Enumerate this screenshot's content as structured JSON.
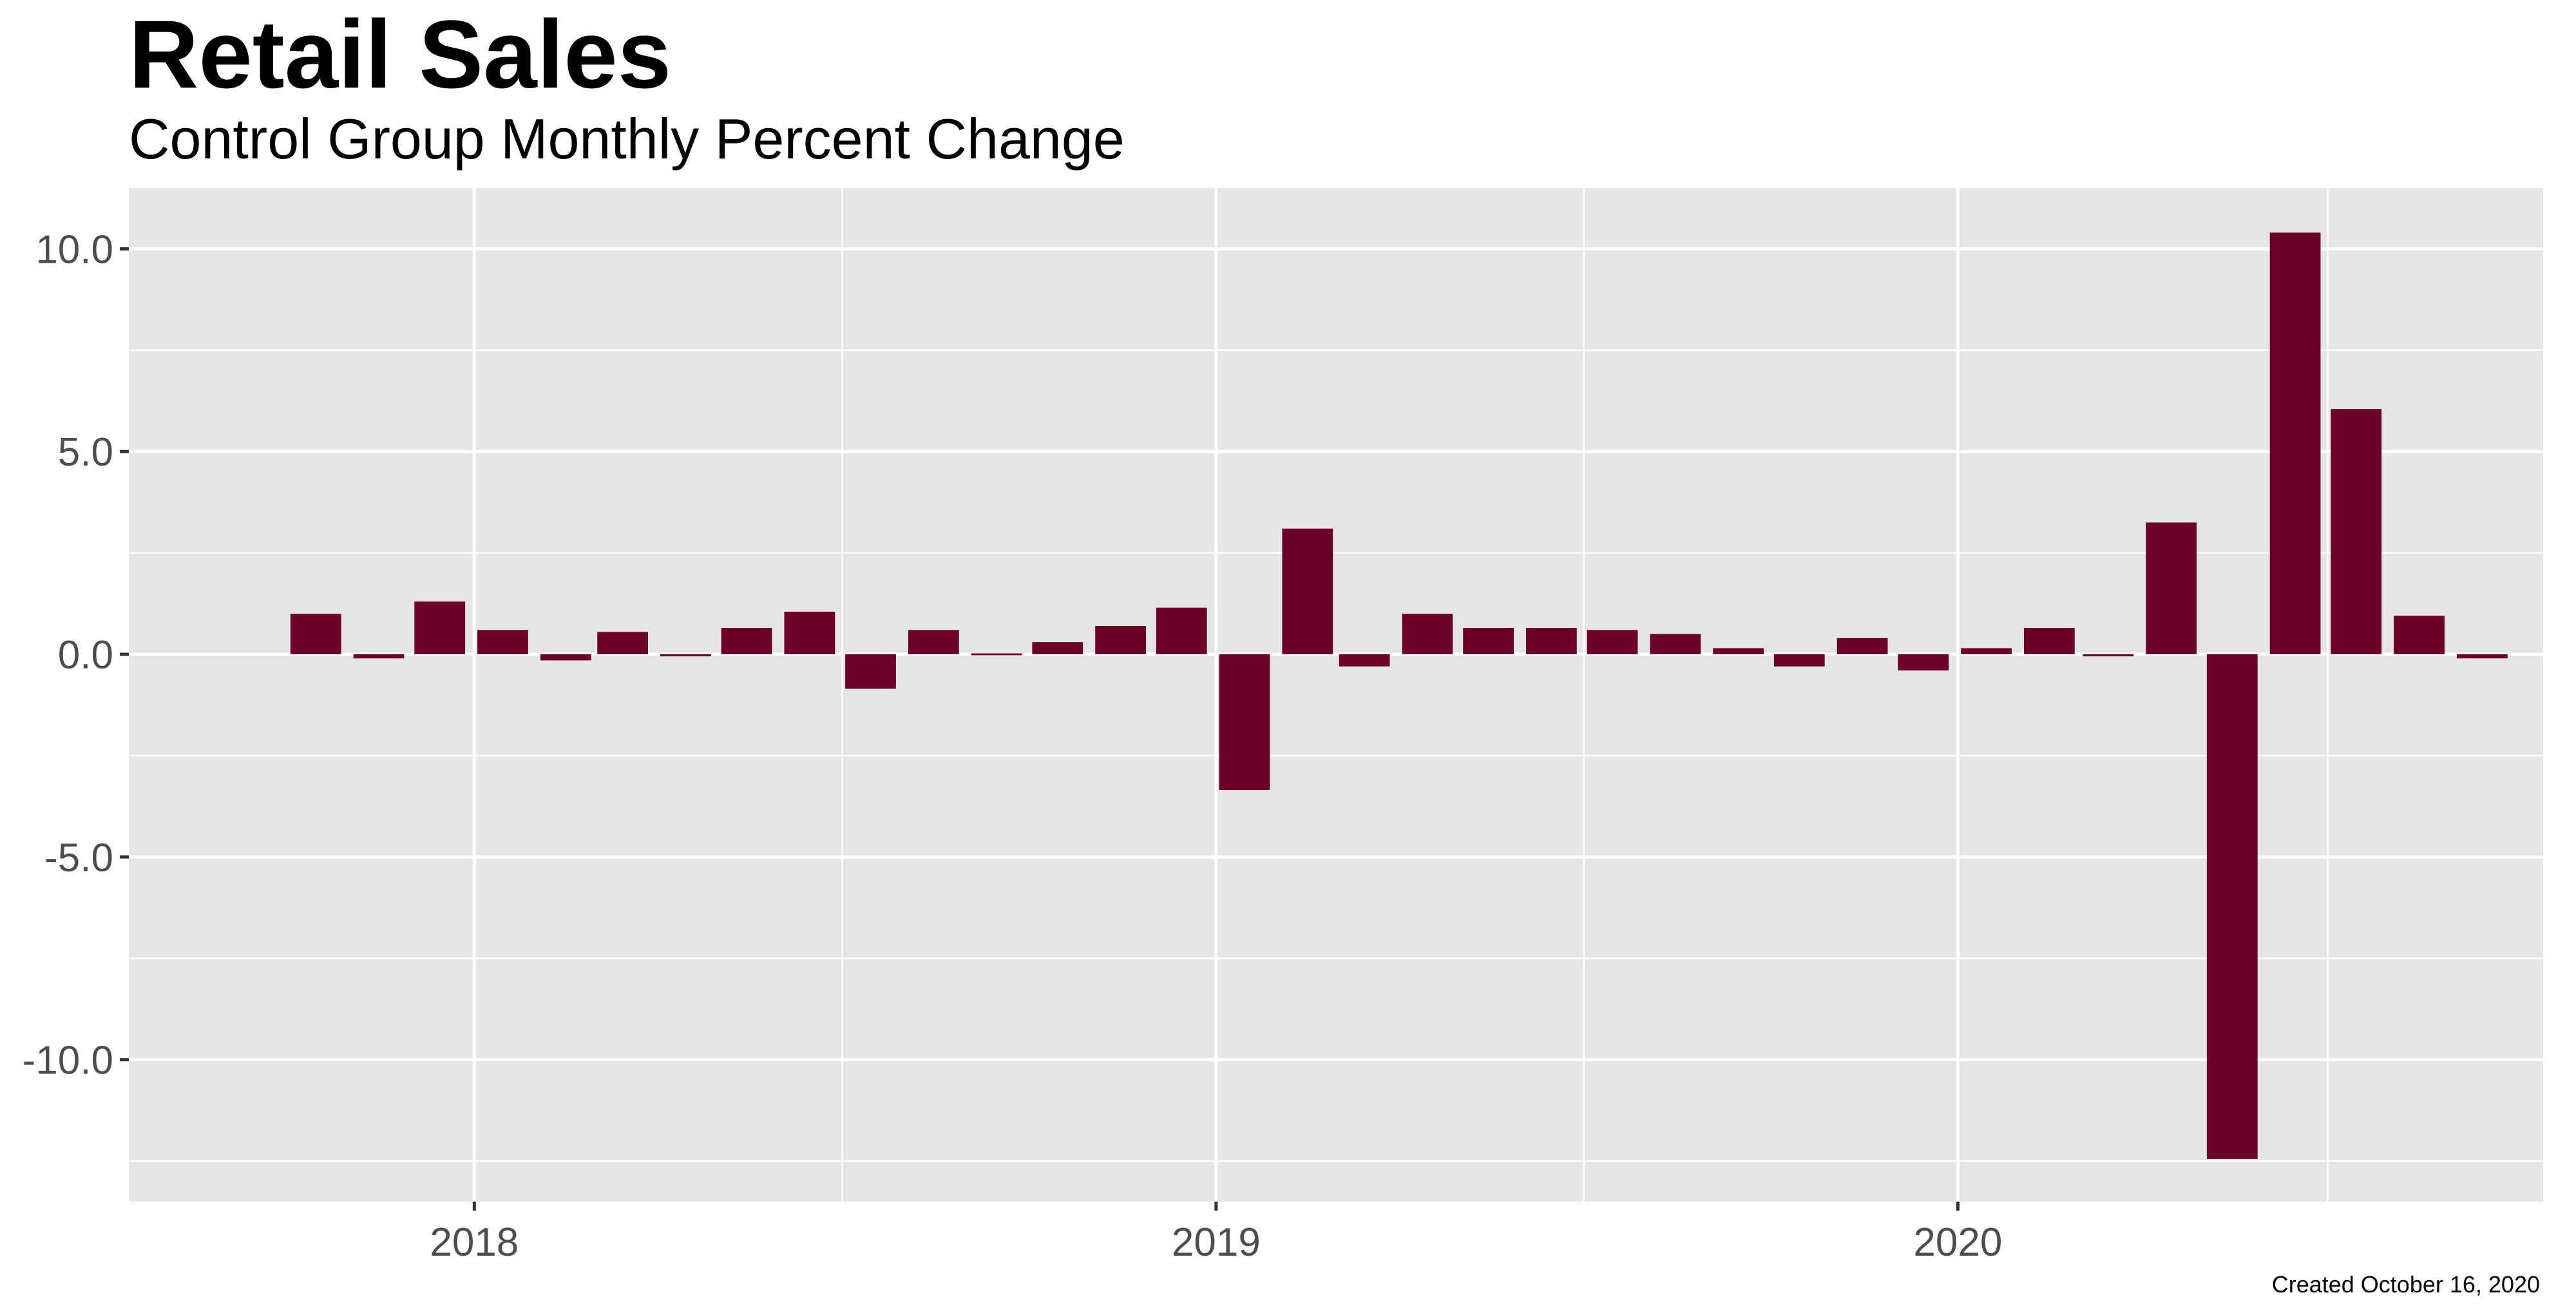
{
  "chart_data": {
    "type": "bar",
    "title": "Retail Sales",
    "subtitle": "Control Group Monthly Percent Change",
    "caption": "Created October 16, 2020",
    "xlabel": "",
    "ylabel": "",
    "x": [
      "2017-10",
      "2017-11",
      "2017-12",
      "2018-01",
      "2018-02",
      "2018-03",
      "2018-04",
      "2018-05",
      "2018-06",
      "2018-07",
      "2018-08",
      "2018-09",
      "2018-10",
      "2018-11",
      "2018-12",
      "2019-01",
      "2019-02",
      "2019-03",
      "2019-04",
      "2019-05",
      "2019-06",
      "2019-07",
      "2019-08",
      "2019-09",
      "2019-10",
      "2019-11",
      "2019-12",
      "2020-01",
      "2020-02",
      "2020-03",
      "2020-04",
      "2020-05",
      "2020-06",
      "2020-07",
      "2020-08",
      "2020-09"
    ],
    "values": [
      1.0,
      -0.1,
      1.3,
      0.6,
      -0.15,
      0.55,
      -0.05,
      0.65,
      1.05,
      -0.85,
      0.6,
      0.0,
      0.3,
      0.7,
      1.15,
      -3.35,
      3.1,
      -0.3,
      1.0,
      0.65,
      0.65,
      0.6,
      0.5,
      0.15,
      -0.3,
      0.4,
      -0.4,
      0.15,
      0.65,
      -0.05,
      3.25,
      -12.45,
      10.4,
      6.05,
      0.95,
      -0.1
    ],
    "xlim": [
      "2017-07-15",
      "2020-10-15"
    ],
    "ylim": [
      -13.5,
      11.5
    ],
    "yticks": [
      10,
      5,
      0,
      -5,
      -10
    ],
    "ytick_labels": [
      "10.0",
      "5.0",
      "0.0",
      "-5.0",
      "-10.0"
    ],
    "xticks": [
      "2018-01-01",
      "2019-01-01",
      "2020-01-01"
    ],
    "xtick_labels": [
      "2018",
      "2019",
      "2020"
    ],
    "grid": true,
    "legend": "none",
    "colors": {
      "bar": "#6b0029",
      "panel": "#e5e5e5",
      "grid": "#ffffff"
    }
  }
}
